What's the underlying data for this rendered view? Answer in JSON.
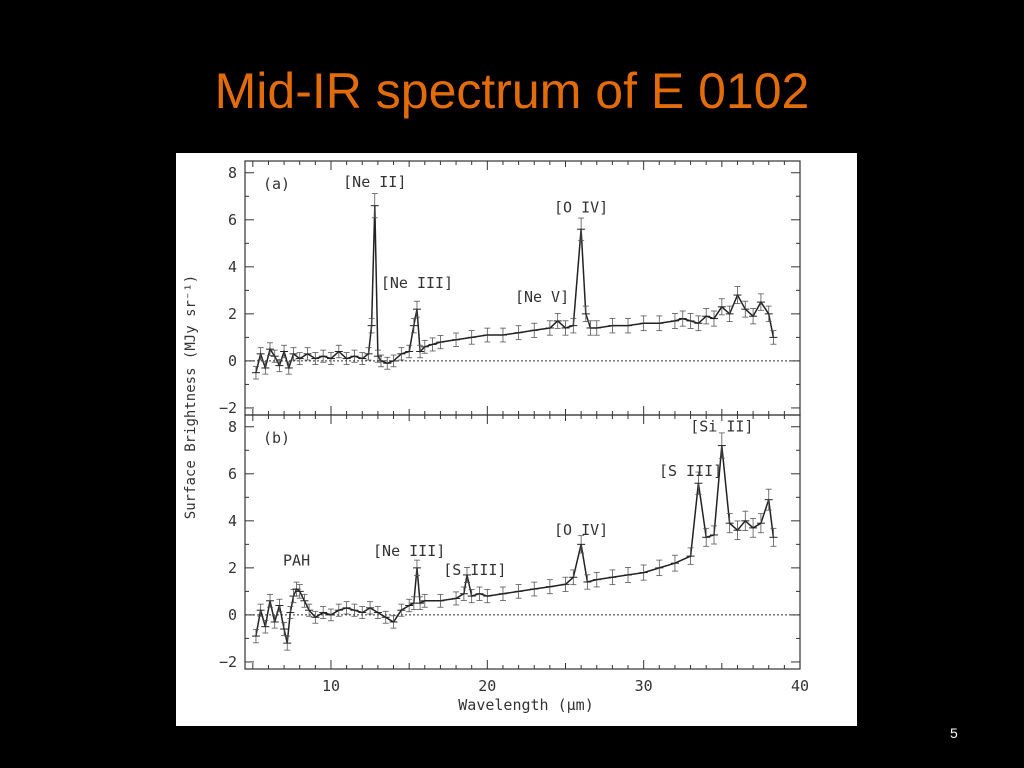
{
  "slide": {
    "title": "Mid-IR spectrum of E 0102",
    "page_number": "5"
  },
  "chart_data": {
    "type": "line",
    "xlabel": "Wavelength (μm)",
    "ylabel": "Surface Brightness (MJy sr⁻¹)",
    "xlim": [
      4.5,
      40
    ],
    "x_ticks": [
      "10",
      "20",
      "30",
      "40"
    ],
    "x_tick_values": [
      10,
      20,
      30,
      40
    ],
    "panels": [
      {
        "label": "(a)",
        "ylim": [
          -2.3,
          8.5
        ],
        "y_ticks": [
          "−2",
          "0",
          "2",
          "4",
          "6",
          "8"
        ],
        "y_tick_values": [
          -2,
          0,
          2,
          4,
          6,
          8
        ],
        "zero_line": true,
        "annotations": [
          {
            "text": "[Ne II]",
            "x": 12.8,
            "y": 7.4
          },
          {
            "text": "[Ne III]",
            "x": 15.5,
            "y": 3.1
          },
          {
            "text": "[Ne V]",
            "x": 23.5,
            "y": 2.5
          },
          {
            "text": "[O IV]",
            "x": 26.0,
            "y": 6.3
          }
        ],
        "series": [
          {
            "x": [
              5.2,
              5.5,
              5.8,
              6.1,
              6.4,
              6.7,
              7.0,
              7.3,
              7.6,
              8.0,
              8.5,
              9.0,
              9.5,
              10.0,
              10.5,
              11.0,
              11.5,
              12.0,
              12.4,
              12.6,
              12.8,
              13.0,
              13.2,
              13.6,
              14.0,
              14.5,
              15.0,
              15.3,
              15.5,
              15.7,
              16.0,
              16.5,
              17.0,
              18.0,
              19.0,
              20.0,
              21.0,
              22.0,
              23.0,
              24.0,
              24.5,
              25.0,
              25.5,
              26.0,
              26.3,
              26.6,
              27.0,
              28.0,
              29.0,
              30.0,
              31.0,
              32.0,
              32.5,
              33.0,
              33.5,
              34.0,
              34.5,
              35.0,
              35.5,
              36.0,
              36.5,
              37.0,
              37.5,
              38.0,
              38.3
            ],
            "values": [
              -0.5,
              0.3,
              -0.3,
              0.5,
              0.2,
              -0.2,
              0.4,
              -0.3,
              0.3,
              0.1,
              0.3,
              0.1,
              0.2,
              0.1,
              0.4,
              0.1,
              0.2,
              0.1,
              0.3,
              1.5,
              6.6,
              0.2,
              0.0,
              -0.1,
              0.0,
              0.3,
              0.4,
              1.5,
              2.2,
              0.4,
              0.6,
              0.7,
              0.8,
              0.9,
              1.0,
              1.1,
              1.1,
              1.2,
              1.3,
              1.4,
              1.7,
              1.4,
              1.5,
              5.6,
              2.0,
              1.4,
              1.4,
              1.5,
              1.5,
              1.6,
              1.6,
              1.7,
              1.8,
              1.7,
              1.6,
              1.9,
              1.8,
              2.3,
              2.0,
              2.8,
              2.2,
              1.9,
              2.5,
              2.0,
              1.0
            ]
          }
        ]
      },
      {
        "label": "(b)",
        "ylim": [
          -2.3,
          8.5
        ],
        "y_ticks": [
          "−2",
          "0",
          "2",
          "4",
          "6",
          "8"
        ],
        "y_tick_values": [
          -2,
          0,
          2,
          4,
          6,
          8
        ],
        "zero_line": true,
        "annotations": [
          {
            "text": "PAH",
            "x": 7.8,
            "y": 2.1
          },
          {
            "text": "[Ne III]",
            "x": 15.0,
            "y": 2.5
          },
          {
            "text": "[S III]",
            "x": 19.2,
            "y": 1.7
          },
          {
            "text": "[O IV]",
            "x": 26.0,
            "y": 3.4
          },
          {
            "text": "[S III]",
            "x": 33.0,
            "y": 5.9
          },
          {
            "text": "[Si II]",
            "x": 35.0,
            "y": 7.8
          }
        ],
        "series": [
          {
            "x": [
              5.2,
              5.5,
              5.8,
              6.1,
              6.4,
              6.7,
              7.0,
              7.2,
              7.4,
              7.6,
              7.8,
              8.0,
              8.3,
              8.6,
              9.0,
              9.5,
              10.0,
              10.5,
              11.0,
              11.5,
              12.0,
              12.5,
              13.0,
              13.5,
              14.0,
              14.5,
              15.0,
              15.3,
              15.5,
              15.7,
              16.0,
              17.0,
              18.0,
              18.5,
              18.7,
              19.0,
              19.5,
              20.0,
              21.0,
              22.0,
              23.0,
              24.0,
              25.0,
              25.5,
              26.0,
              26.4,
              27.0,
              28.0,
              29.0,
              30.0,
              31.0,
              32.0,
              33.0,
              33.5,
              34.0,
              34.5,
              35.0,
              35.5,
              36.0,
              36.5,
              37.0,
              37.5,
              38.0,
              38.3
            ],
            "values": [
              -0.9,
              0.2,
              -0.5,
              0.6,
              -0.3,
              0.4,
              -0.6,
              -1.2,
              0.1,
              0.8,
              1.1,
              1.0,
              0.6,
              0.2,
              -0.1,
              0.1,
              0.0,
              0.2,
              0.3,
              0.2,
              0.1,
              0.3,
              0.1,
              -0.1,
              -0.3,
              0.2,
              0.4,
              0.5,
              2.0,
              0.5,
              0.6,
              0.6,
              0.7,
              0.9,
              1.7,
              0.8,
              0.9,
              0.8,
              0.9,
              1.0,
              1.1,
              1.2,
              1.3,
              1.6,
              3.0,
              1.4,
              1.5,
              1.6,
              1.7,
              1.8,
              2.0,
              2.2,
              2.5,
              5.6,
              3.3,
              3.4,
              7.2,
              3.9,
              3.6,
              4.0,
              3.7,
              3.9,
              4.9,
              3.3
            ]
          }
        ]
      }
    ]
  }
}
